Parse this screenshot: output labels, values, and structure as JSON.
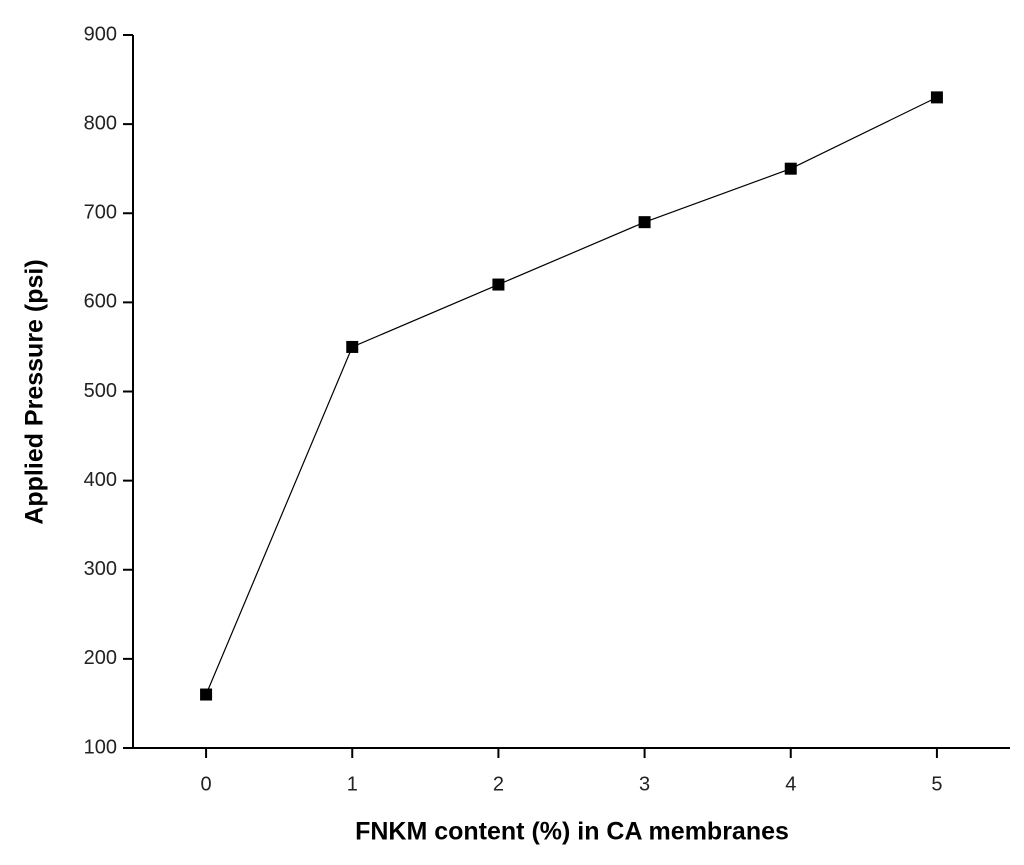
{
  "chart_data": {
    "type": "line",
    "x_label": "FNKM content (%) in CA membranes",
    "y_label": "Applied Pressure (psi)",
    "x": [
      0,
      1,
      2,
      3,
      4,
      5
    ],
    "series": [
      {
        "name": "Applied Pressure",
        "color": "#000000",
        "values": [
          160,
          550,
          620,
          690,
          750,
          830
        ]
      }
    ],
    "xlim": [
      -0.5,
      5.5
    ],
    "xticks": [
      0,
      1,
      2,
      3,
      4,
      5
    ],
    "ylim": [
      100,
      900
    ],
    "yticks": [
      100,
      200,
      300,
      400,
      500,
      600,
      700,
      800,
      900
    ],
    "grid": false
  }
}
